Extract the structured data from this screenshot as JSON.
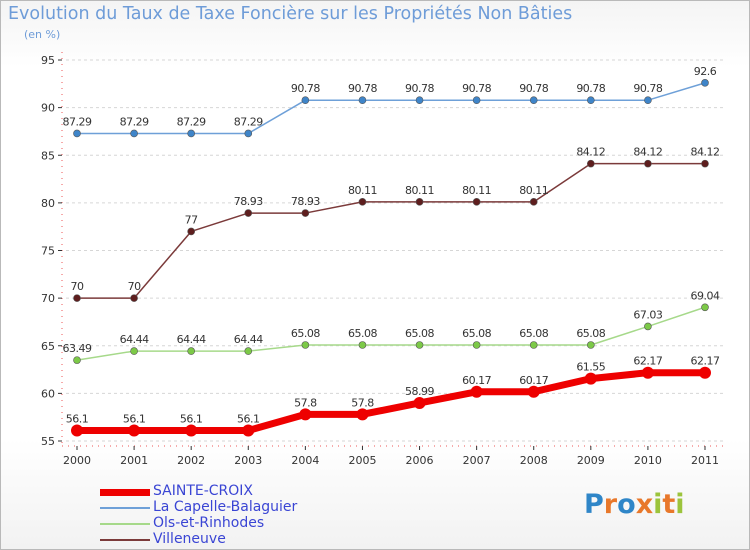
{
  "header": {
    "title": "Evolution du Taux de Taxe Foncière sur les Propriétés Non Bâties",
    "subtitle": "(en %)"
  },
  "logo": {
    "text": "Proxiti",
    "colors": [
      "#2f86c8",
      "#e8782b",
      "#9cc43c"
    ]
  },
  "chart_data": {
    "type": "line",
    "title": "Evolution du Taux de Taxe Foncière sur les Propriétés Non Bâties",
    "subtitle": "(en %)",
    "xlabel": "",
    "ylabel": "",
    "x": [
      "2000",
      "2001",
      "2002",
      "2003",
      "2004",
      "2005",
      "2006",
      "2007",
      "2008",
      "2009",
      "2010",
      "2011"
    ],
    "ylim": [
      55,
      95
    ],
    "yticks": [
      55,
      60,
      65,
      70,
      75,
      80,
      85,
      90,
      95
    ],
    "grid": "dashed horizontal",
    "legend_position": "bottom-left",
    "series": [
      {
        "name": "La Capelle-Balaguier",
        "color": "#6ea0d8",
        "marker": "#3f85c9",
        "width": 1.5,
        "values": [
          87.29,
          87.29,
          87.29,
          87.29,
          90.78,
          90.78,
          90.78,
          90.78,
          90.78,
          90.78,
          90.78,
          92.6
        ],
        "labels": [
          "87.29",
          "87.29",
          "87.29",
          "87.29",
          "90.78",
          "90.78",
          "90.78",
          "90.78",
          "90.78",
          "90.78",
          "90.78",
          "92.6"
        ]
      },
      {
        "name": "Villeneuve",
        "color": "#7b3a3a",
        "marker": "#5e1e1e",
        "width": 1.5,
        "values": [
          70,
          70,
          77,
          78.93,
          78.93,
          80.11,
          80.11,
          80.11,
          80.11,
          84.12,
          84.12,
          84.12
        ],
        "labels": [
          "70",
          "70",
          "77",
          "78.93",
          "78.93",
          "80.11",
          "80.11",
          "80.11",
          "80.11",
          "84.12",
          "84.12",
          "84.12"
        ]
      },
      {
        "name": "Ols-et-Rinhodes",
        "color": "#a6d98a",
        "marker": "#7cc947",
        "width": 1.5,
        "values": [
          63.49,
          64.44,
          64.44,
          64.44,
          65.08,
          65.08,
          65.08,
          65.08,
          65.08,
          65.08,
          67.03,
          69.04
        ],
        "labels": [
          "63.49",
          "64.44",
          "64.44",
          "64.44",
          "65.08",
          "65.08",
          "65.08",
          "65.08",
          "65.08",
          "65.08",
          "67.03",
          "69.04"
        ]
      },
      {
        "name": "SAINTE-CROIX",
        "color": "#ee0000",
        "marker": "#ee0000",
        "width": 7,
        "values": [
          56.1,
          56.1,
          56.1,
          56.1,
          57.8,
          57.8,
          58.99,
          60.17,
          60.17,
          61.55,
          62.17,
          62.17
        ],
        "labels": [
          "56.1",
          "56.1",
          "56.1",
          "56.1",
          "57.8",
          "57.8",
          "58.99",
          "60.17",
          "60.17",
          "61.55",
          "62.17",
          "62.17"
        ]
      }
    ]
  },
  "legend": {
    "items": [
      {
        "label": "SAINTE-CROIX",
        "color": "#ee0000",
        "thickness": 7
      },
      {
        "label": "La Capelle-Balaguier",
        "color": "#6ea0d8",
        "thickness": 2
      },
      {
        "label": "Ols-et-Rinhodes",
        "color": "#a6d98a",
        "thickness": 2
      },
      {
        "label": "Villeneuve",
        "color": "#7b3a3a",
        "thickness": 2
      }
    ]
  }
}
